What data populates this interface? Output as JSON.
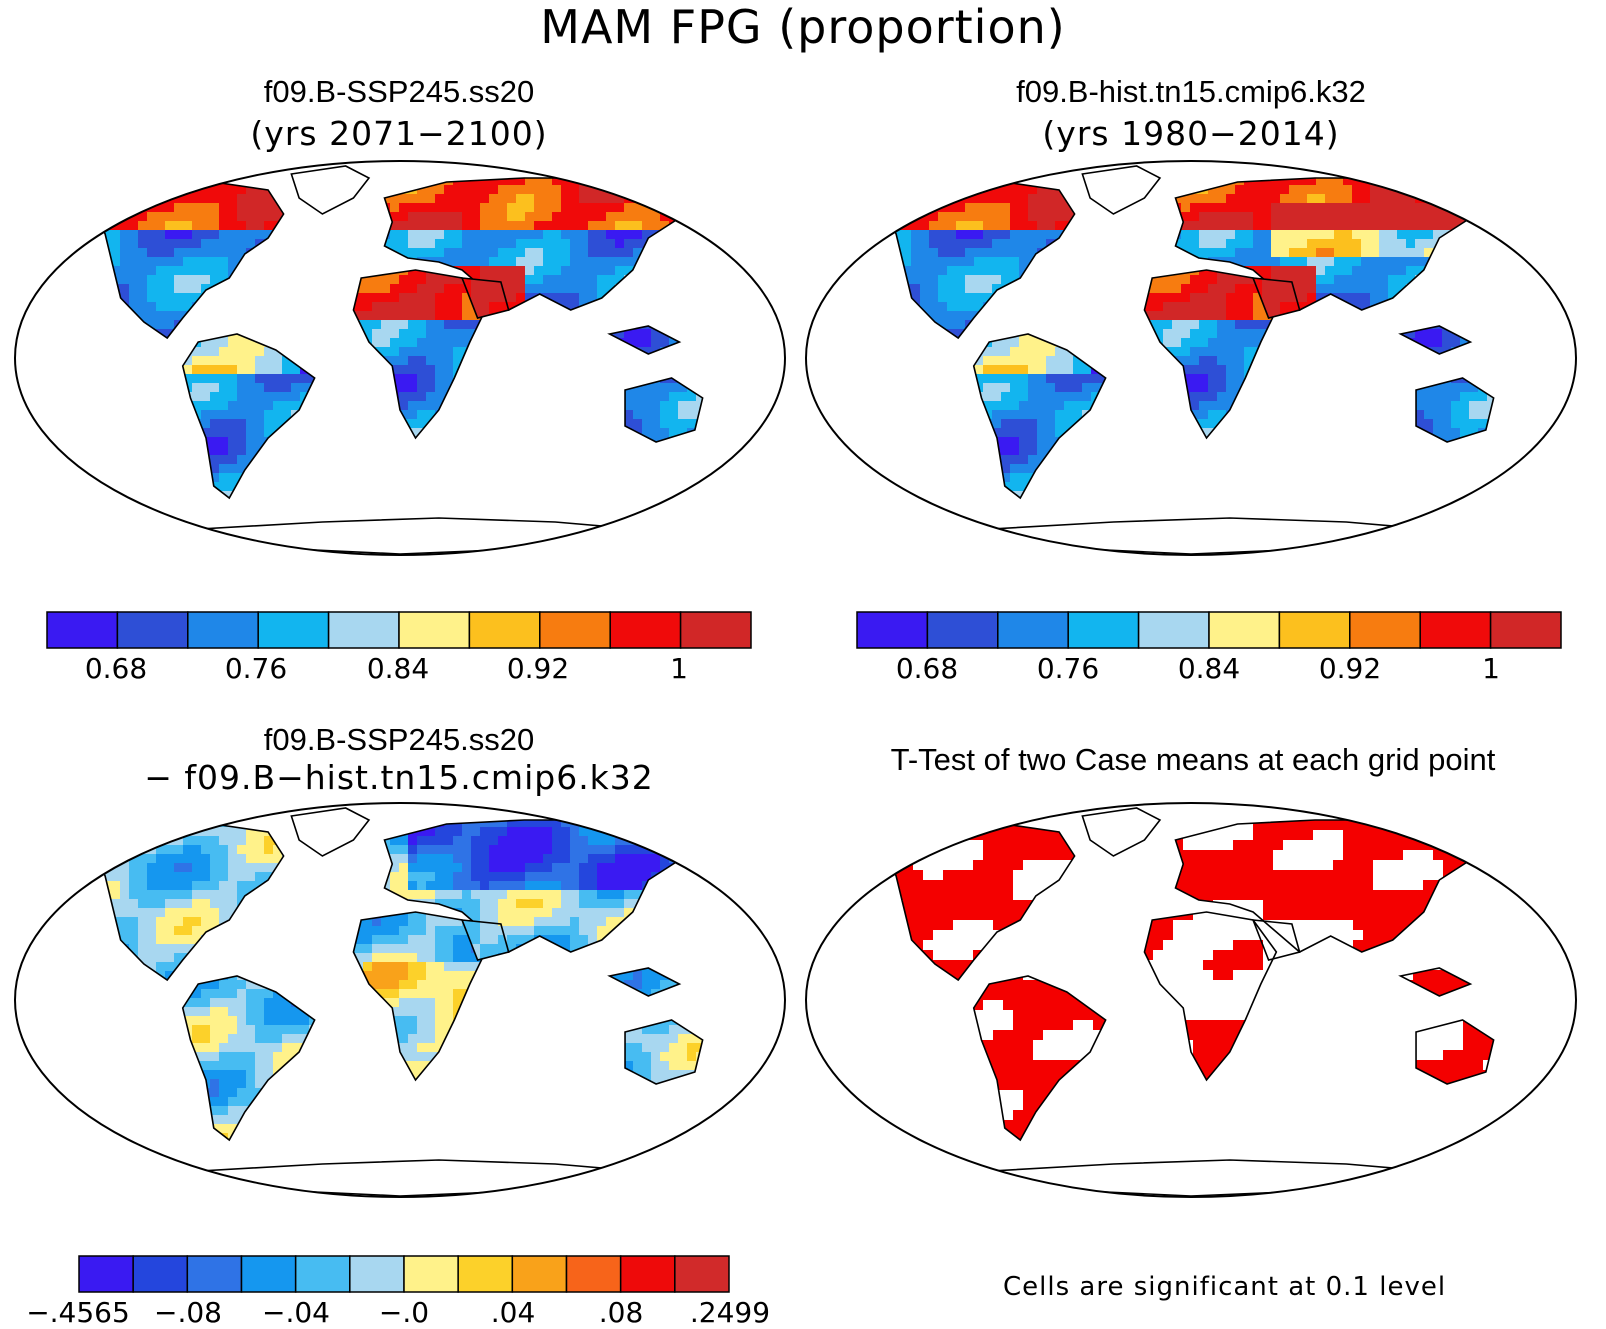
{
  "figure_title": "MAM FPG (proportion)",
  "panels": {
    "p1": {
      "title": "f09.B-SSP245.ss20",
      "subtitle": "(yrs 2071−2100)"
    },
    "p2": {
      "title": "f09.B-hist.tn15.cmip6.k32",
      "subtitle": "(yrs 1980−2014)"
    },
    "p3": {
      "title": "f09.B-SSP245.ss20",
      "subtitle": "− f09.B−hist.tn15.cmip6.k32"
    },
    "p4": {
      "title": "T-Test of two Case means at each grid point",
      "note": "Cells are significant at 0.1 level"
    }
  },
  "colorbars": {
    "abs": {
      "colors": [
        "#3a1af2",
        "#2e4fd6",
        "#1f87e8",
        "#12b5ef",
        "#a8d7f0",
        "#fff28a",
        "#fcc01e",
        "#f77c10",
        "#f00a0a",
        "#d12727"
      ],
      "labels": [
        "0.68",
        "0.76",
        "0.84",
        "0.92",
        "1"
      ]
    },
    "diff": {
      "colors": [
        "#3a1af2",
        "#2446dd",
        "#2f73e6",
        "#1597ef",
        "#47bcf2",
        "#a8d7f0",
        "#fff28a",
        "#fcd12a",
        "#f9a21a",
        "#f7641a",
        "#ee0a0a",
        "#d12a2a"
      ],
      "labels": [
        "−.4565",
        "−.08",
        "−.04",
        "−.0",
        ".04",
        ".08",
        ".2499"
      ]
    },
    "ttest": {
      "significant_color": "#f40000"
    }
  }
}
